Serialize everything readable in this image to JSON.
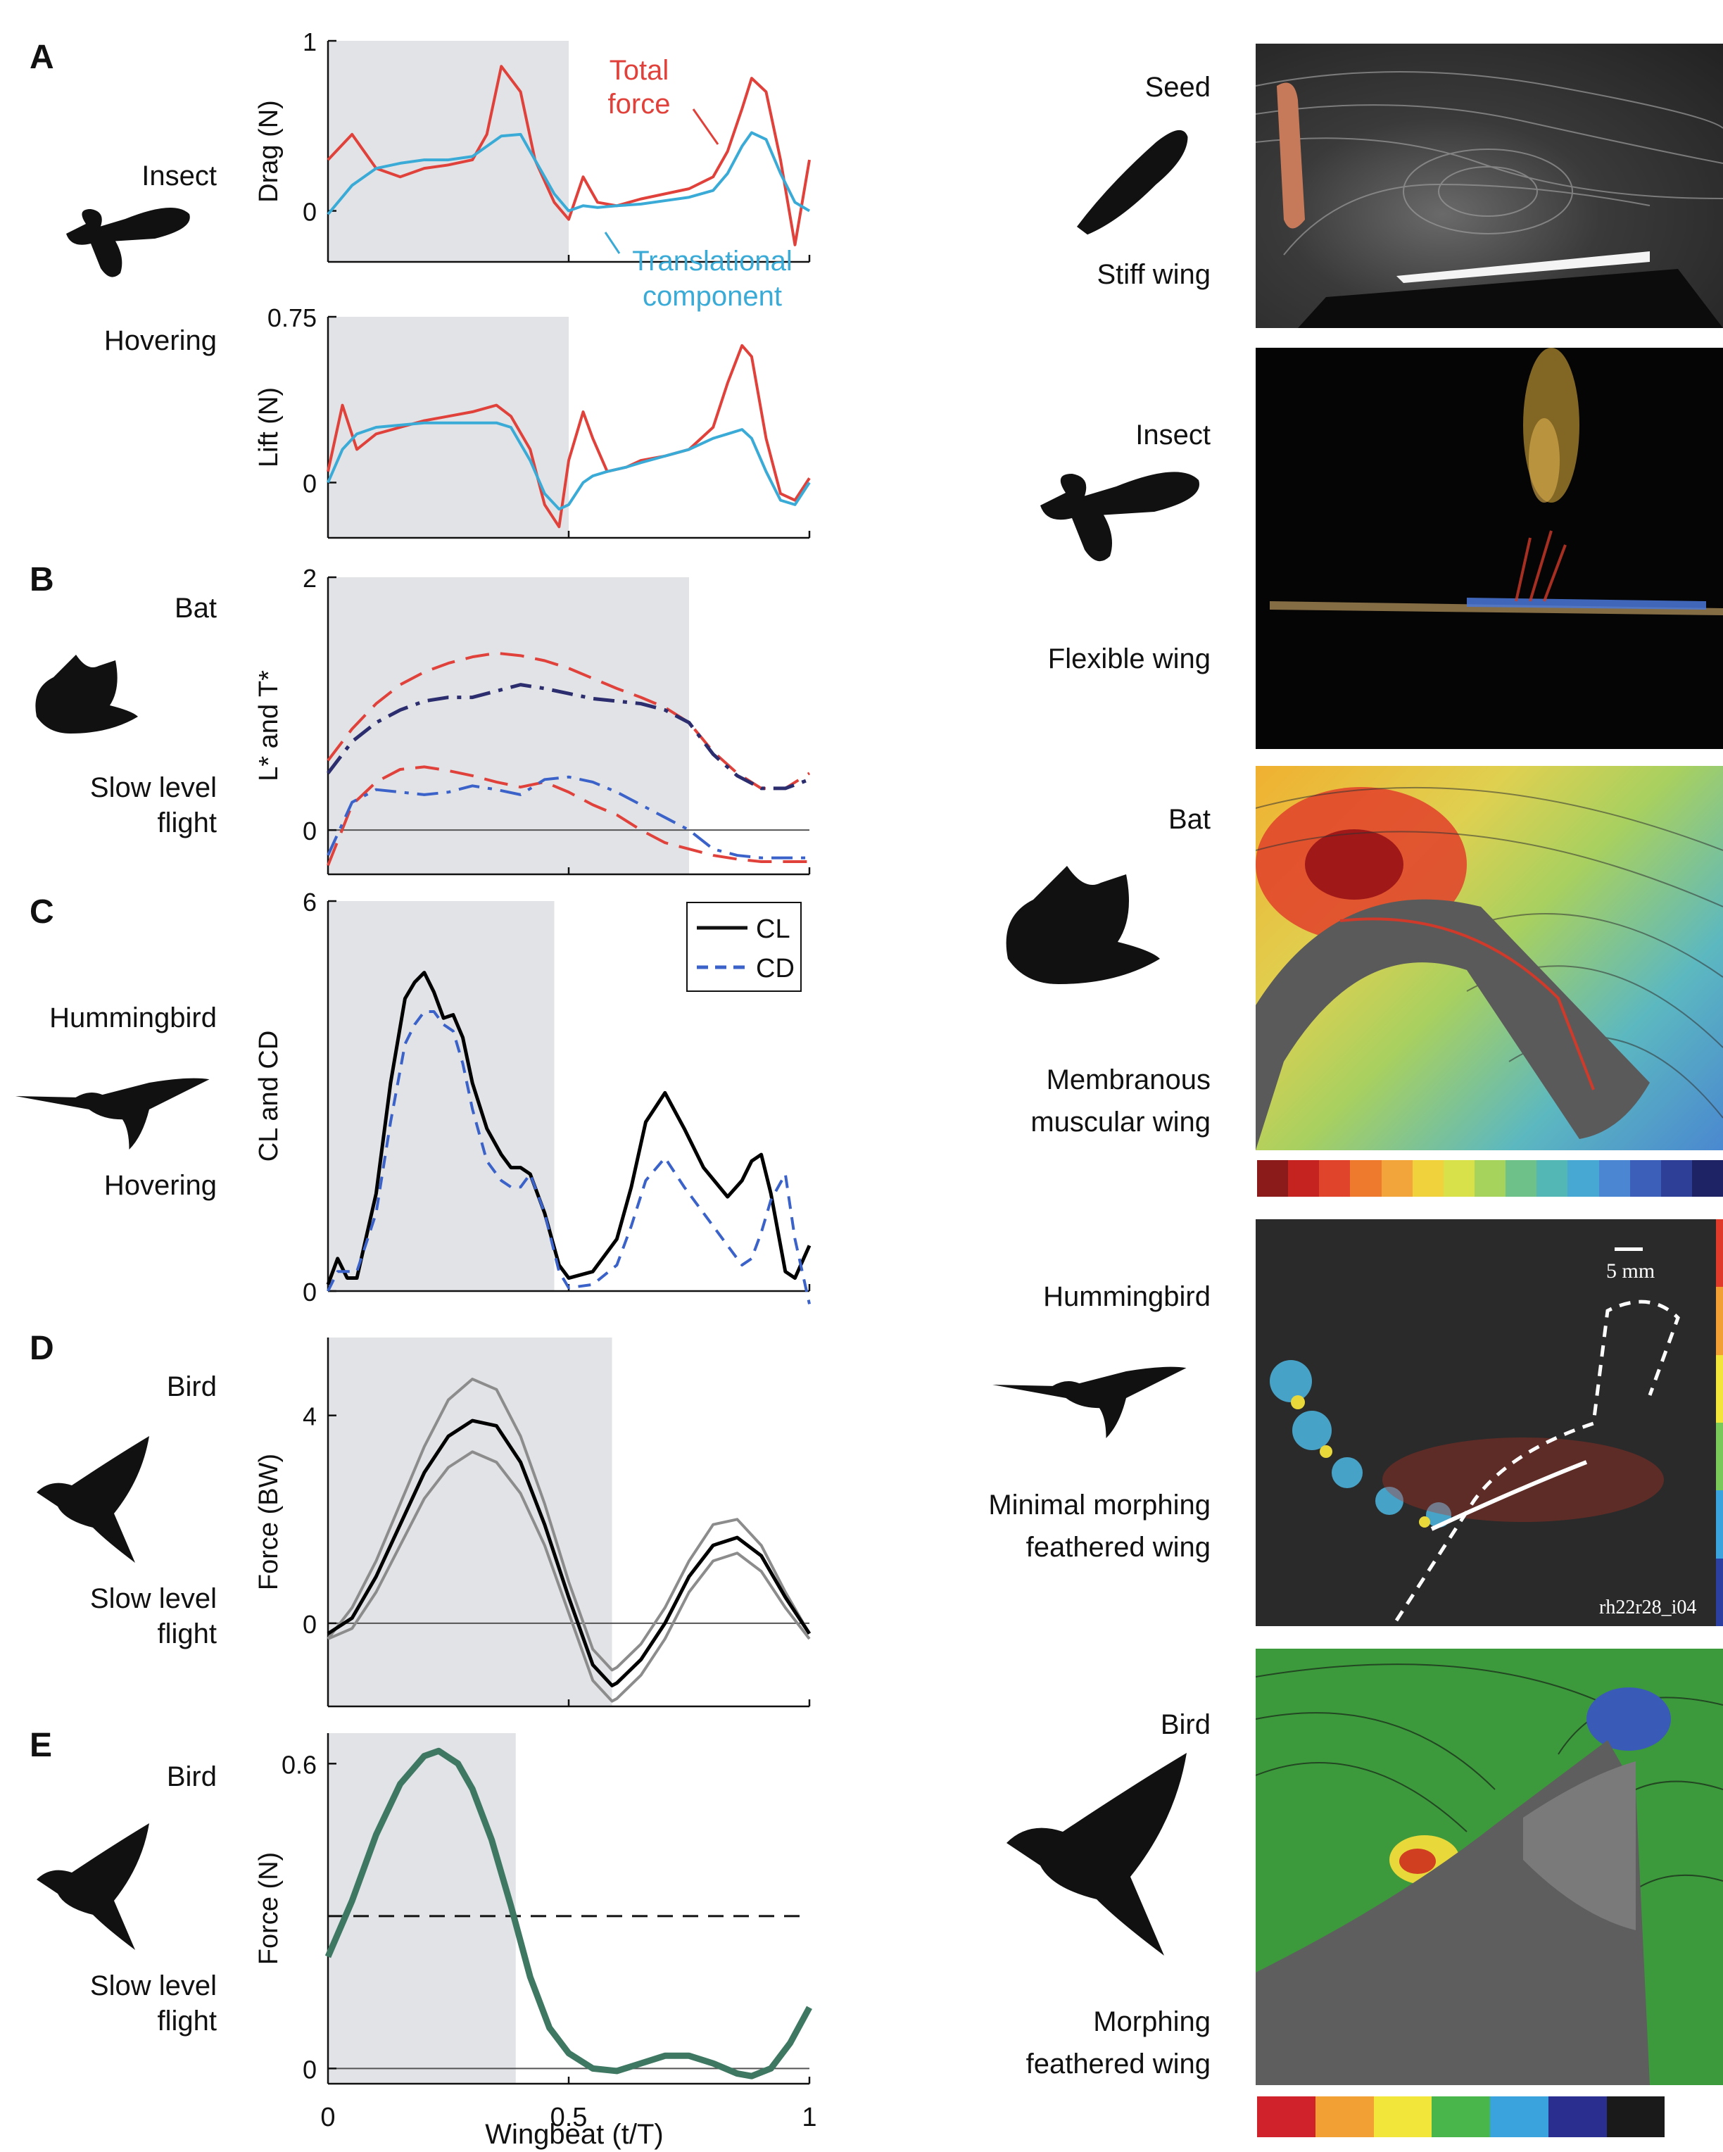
{
  "panels": [
    {
      "letter": "A",
      "organism": "Insect",
      "mode": "Hovering"
    },
    {
      "letter": "B",
      "organism": "Bat",
      "mode": "Slow level\nflight"
    },
    {
      "letter": "C",
      "organism": "Hummingbird",
      "mode": "Hovering"
    },
    {
      "letter": "D",
      "organism": "Bird",
      "mode": "Slow level\nflight"
    },
    {
      "letter": "E",
      "organism": "Bird",
      "mode": "Slow level\nflight"
    }
  ],
  "annotations": {
    "total_force": "Total\nforce",
    "translational": "Translational\ncomponent",
    "scale_bar": "5 mm",
    "image_code": "rh22r28_i04"
  },
  "shared_xlabel": "Wingbeat (t/T)",
  "x_ticks": [
    "0",
    "0.5",
    "1"
  ],
  "right_column": [
    {
      "organism": "Seed",
      "wing": "Stiff wing"
    },
    {
      "organism": "Insect",
      "wing": "Flexible wing"
    },
    {
      "organism": "Bat",
      "wing": "Membranous\nmuscular wing"
    },
    {
      "organism": "Hummingbird",
      "wing": "Minimal morphing\nfeathered wing"
    },
    {
      "organism": "Bird",
      "wing": "Morphing\nfeathered wing"
    }
  ],
  "colors": {
    "red": "#e0413a",
    "cyan": "#3aaad6",
    "navy": "#2b2d6e",
    "blue": "#3a62c9",
    "green": "#3e7863",
    "gray": "#8c8c8c",
    "shade": "#e1e3e6"
  },
  "colorbar_bat": [
    "#8b1a1a",
    "#c4231f",
    "#e0452b",
    "#ee7a2d",
    "#f2a53a",
    "#efd23c",
    "#d8e04a",
    "#a6d35b",
    "#6fc18a",
    "#53b7b5",
    "#48a8d4",
    "#4a86d2",
    "#3c5fb9",
    "#2e3f97",
    "#1e2366"
  ],
  "colorbar_bird": [
    "#d0222a",
    "#f2a033",
    "#f2e63a",
    "#48b64a",
    "#3aa2dc",
    "#2a2f8f",
    "#1a1a1a",
    "#ffffff"
  ],
  "colorbar_hummingbird": [
    "#e03a2a",
    "#f2a033",
    "#f2e63a",
    "#78c85a",
    "#3aa2dc",
    "#2a3f9f"
  ],
  "chart_data": [
    {
      "type": "line",
      "panel": "A-top",
      "ylabel": "Drag (N)",
      "ylim": [
        -0.3,
        1
      ],
      "yticks": [
        0,
        1
      ],
      "shade": [
        0,
        0.5
      ],
      "x": [
        0,
        0.05,
        0.1,
        0.15,
        0.2,
        0.25,
        0.3,
        0.33,
        0.36,
        0.4,
        0.43,
        0.47,
        0.5,
        0.53,
        0.56,
        0.6,
        0.65,
        0.7,
        0.75,
        0.8,
        0.83,
        0.86,
        0.88,
        0.91,
        0.94,
        0.97,
        1
      ],
      "series": [
        {
          "name": "Total force",
          "color": "red",
          "values": [
            0.3,
            0.45,
            0.25,
            0.2,
            0.25,
            0.27,
            0.3,
            0.45,
            0.85,
            0.7,
            0.3,
            0.05,
            -0.05,
            0.2,
            0.05,
            0.03,
            0.07,
            0.1,
            0.13,
            0.2,
            0.35,
            0.6,
            0.78,
            0.7,
            0.3,
            -0.2,
            0.3
          ]
        },
        {
          "name": "Translational component",
          "color": "cyan",
          "values": [
            -0.02,
            0.15,
            0.25,
            0.28,
            0.3,
            0.3,
            0.32,
            0.38,
            0.44,
            0.45,
            0.3,
            0.1,
            0,
            0.03,
            0.02,
            0.03,
            0.04,
            0.06,
            0.08,
            0.12,
            0.22,
            0.38,
            0.46,
            0.42,
            0.22,
            0.05,
            0
          ]
        }
      ]
    },
    {
      "type": "line",
      "panel": "A-bottom",
      "ylabel": "Lift (N)",
      "ylim": [
        -0.25,
        0.75
      ],
      "yticks": [
        0,
        0.75
      ],
      "shade": [
        0,
        0.5
      ],
      "x": [
        0,
        0.03,
        0.06,
        0.1,
        0.15,
        0.2,
        0.25,
        0.3,
        0.35,
        0.38,
        0.42,
        0.45,
        0.48,
        0.5,
        0.53,
        0.55,
        0.58,
        0.62,
        0.65,
        0.7,
        0.75,
        0.8,
        0.83,
        0.86,
        0.88,
        0.91,
        0.94,
        0.97,
        1
      ],
      "series": [
        {
          "name": "Total force",
          "color": "red",
          "values": [
            0.05,
            0.35,
            0.15,
            0.22,
            0.25,
            0.28,
            0.3,
            0.32,
            0.35,
            0.3,
            0.15,
            -0.1,
            -0.2,
            0.1,
            0.32,
            0.2,
            0.05,
            0.07,
            0.1,
            0.12,
            0.15,
            0.25,
            0.45,
            0.62,
            0.57,
            0.2,
            -0.05,
            -0.08,
            0.02
          ]
        },
        {
          "name": "Translational component",
          "color": "cyan",
          "values": [
            0,
            0.15,
            0.22,
            0.25,
            0.26,
            0.27,
            0.27,
            0.27,
            0.27,
            0.25,
            0.1,
            -0.05,
            -0.12,
            -0.1,
            0,
            0.03,
            0.05,
            0.07,
            0.09,
            0.12,
            0.15,
            0.2,
            0.22,
            0.24,
            0.2,
            0.05,
            -0.08,
            -0.1,
            0
          ]
        }
      ]
    },
    {
      "type": "line",
      "panel": "B",
      "ylabel": "L* and T*",
      "ylim": [
        -0.35,
        2
      ],
      "yticks": [
        0,
        2
      ],
      "shade": [
        0,
        0.75
      ],
      "x": [
        0,
        0.05,
        0.1,
        0.15,
        0.2,
        0.25,
        0.3,
        0.35,
        0.4,
        0.45,
        0.5,
        0.55,
        0.6,
        0.65,
        0.7,
        0.75,
        0.8,
        0.85,
        0.9,
        0.95,
        1
      ],
      "series": [
        {
          "name": "",
          "color": "red",
          "dash": "long",
          "values": [
            0.55,
            0.8,
            1.0,
            1.15,
            1.25,
            1.32,
            1.37,
            1.4,
            1.38,
            1.34,
            1.28,
            1.2,
            1.12,
            1.05,
            0.97,
            0.85,
            0.62,
            0.45,
            0.33,
            0.33,
            0.45
          ]
        },
        {
          "name": "",
          "color": "navy",
          "dash": "dashdot",
          "values": [
            0.45,
            0.7,
            0.85,
            0.95,
            1.02,
            1.05,
            1.05,
            1.1,
            1.15,
            1.12,
            1.08,
            1.04,
            1.02,
            1.0,
            0.95,
            0.85,
            0.6,
            0.43,
            0.33,
            0.33,
            0.4
          ]
        },
        {
          "name": "",
          "color": "red",
          "dash": "long",
          "values": [
            -0.28,
            0.2,
            0.38,
            0.48,
            0.5,
            0.47,
            0.43,
            0.38,
            0.34,
            0.38,
            0.3,
            0.2,
            0.12,
            0.0,
            -0.1,
            -0.15,
            -0.2,
            -0.23,
            -0.25,
            -0.25,
            -0.25
          ]
        },
        {
          "name": "",
          "color": "blue",
          "dash": "dashdot",
          "values": [
            -0.2,
            0.22,
            0.32,
            0.3,
            0.28,
            0.3,
            0.35,
            0.32,
            0.28,
            0.4,
            0.42,
            0.38,
            0.3,
            0.2,
            0.1,
            0.0,
            -0.15,
            -0.2,
            -0.22,
            -0.22,
            -0.22
          ]
        }
      ]
    },
    {
      "type": "line",
      "panel": "C",
      "ylabel": "C_L and C_D",
      "ylim": [
        0,
        6
      ],
      "yticks": [
        0,
        6
      ],
      "shade": [
        0,
        0.47
      ],
      "legend": {
        "placement": "top-right",
        "entries": [
          "C_L",
          "C_D"
        ]
      },
      "x": [
        0,
        0.02,
        0.04,
        0.06,
        0.1,
        0.13,
        0.16,
        0.18,
        0.2,
        0.22,
        0.24,
        0.26,
        0.28,
        0.3,
        0.33,
        0.36,
        0.38,
        0.4,
        0.42,
        0.45,
        0.48,
        0.5,
        0.55,
        0.6,
        0.63,
        0.66,
        0.7,
        0.74,
        0.78,
        0.83,
        0.86,
        0.88,
        0.9,
        0.92,
        0.95,
        0.97,
        1
      ],
      "series": [
        {
          "name": "C_L",
          "color": "black",
          "values": [
            0.1,
            0.5,
            0.2,
            0.2,
            1.5,
            3.2,
            4.5,
            4.75,
            4.9,
            4.6,
            4.2,
            4.25,
            3.9,
            3.2,
            2.5,
            2.1,
            1.9,
            1.9,
            1.8,
            1.2,
            0.4,
            0.2,
            0.3,
            0.8,
            1.6,
            2.6,
            3.05,
            2.5,
            1.9,
            1.45,
            1.7,
            2.0,
            2.1,
            1.5,
            0.3,
            0.2,
            0.7
          ]
        },
        {
          "name": "C_D",
          "color": "blue",
          "dash": "short",
          "values": [
            0,
            0.3,
            0.3,
            0.3,
            1.2,
            2.6,
            3.8,
            4.1,
            4.3,
            4.3,
            4.1,
            4.0,
            3.5,
            2.8,
            2.0,
            1.7,
            1.6,
            1.6,
            1.8,
            1.2,
            0.3,
            0.05,
            0.1,
            0.4,
            1.0,
            1.7,
            2.05,
            1.6,
            1.2,
            0.7,
            0.4,
            0.5,
            0.9,
            1.4,
            1.8,
            0.8,
            -0.2
          ]
        }
      ]
    },
    {
      "type": "line",
      "panel": "D",
      "ylabel": "Force (BW)",
      "ylim": [
        -1.6,
        5.5
      ],
      "yticks": [
        0,
        4
      ],
      "shade": [
        0,
        0.59
      ],
      "x": [
        0,
        0.05,
        0.1,
        0.15,
        0.2,
        0.25,
        0.3,
        0.35,
        0.4,
        0.45,
        0.5,
        0.55,
        0.59,
        0.6,
        0.65,
        0.7,
        0.75,
        0.8,
        0.85,
        0.9,
        0.95,
        1
      ],
      "series": [
        {
          "name": "",
          "color": "gray",
          "values": [
            -0.3,
            0.3,
            1.2,
            2.3,
            3.4,
            4.3,
            4.7,
            4.5,
            3.6,
            2.3,
            0.8,
            -0.5,
            -0.9,
            -0.85,
            -0.4,
            0.3,
            1.2,
            1.9,
            2.0,
            1.5,
            0.6,
            -0.2
          ]
        },
        {
          "name": "",
          "color": "black",
          "values": [
            -0.2,
            0.1,
            0.9,
            1.9,
            2.9,
            3.6,
            3.9,
            3.8,
            3.1,
            1.9,
            0.5,
            -0.8,
            -1.2,
            -1.15,
            -0.7,
            0.0,
            0.9,
            1.5,
            1.65,
            1.3,
            0.5,
            -0.2
          ]
        },
        {
          "name": "",
          "color": "gray",
          "values": [
            -0.3,
            -0.1,
            0.6,
            1.5,
            2.4,
            3.0,
            3.3,
            3.1,
            2.5,
            1.5,
            0.2,
            -1.1,
            -1.5,
            -1.45,
            -1.0,
            -0.3,
            0.6,
            1.2,
            1.35,
            1.0,
            0.3,
            -0.3
          ]
        }
      ]
    },
    {
      "type": "line",
      "panel": "E",
      "ylabel": "Force (N)",
      "ylim": [
        -0.03,
        0.66
      ],
      "yticks": [
        0,
        0.6
      ],
      "shade": [
        0,
        0.39
      ],
      "hline": 0.3,
      "x": [
        0,
        0.05,
        0.1,
        0.15,
        0.2,
        0.23,
        0.27,
        0.3,
        0.34,
        0.38,
        0.42,
        0.46,
        0.5,
        0.55,
        0.6,
        0.65,
        0.7,
        0.75,
        0.8,
        0.85,
        0.88,
        0.92,
        0.96,
        1
      ],
      "series": [
        {
          "name": "",
          "color": "green",
          "values": [
            0.22,
            0.33,
            0.46,
            0.56,
            0.615,
            0.625,
            0.6,
            0.55,
            0.45,
            0.32,
            0.18,
            0.08,
            0.03,
            0.0,
            -0.005,
            0.01,
            0.025,
            0.025,
            0.01,
            -0.01,
            -0.015,
            0.0,
            0.05,
            0.12
          ]
        }
      ]
    }
  ]
}
